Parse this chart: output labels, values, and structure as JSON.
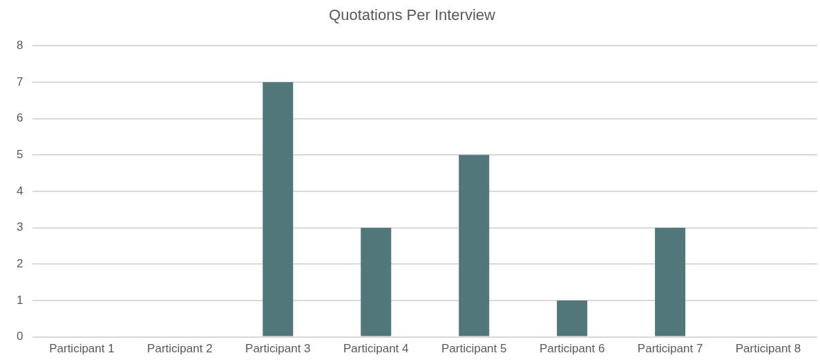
{
  "chart_data": {
    "type": "bar",
    "title": "Quotations Per Interview",
    "categories": [
      "Participant 1",
      "Participant 2",
      "Participant 3",
      "Participant 4",
      "Participant 5",
      "Participant 6",
      "Participant 7",
      "Participant 8"
    ],
    "values": [
      0,
      0,
      7,
      3,
      5,
      1,
      3,
      0
    ],
    "color": "#52777a",
    "ylim": [
      0,
      8
    ],
    "yticks": [
      0,
      1,
      2,
      3,
      4,
      5,
      6,
      7,
      8
    ],
    "grid": "y",
    "legend": false
  }
}
